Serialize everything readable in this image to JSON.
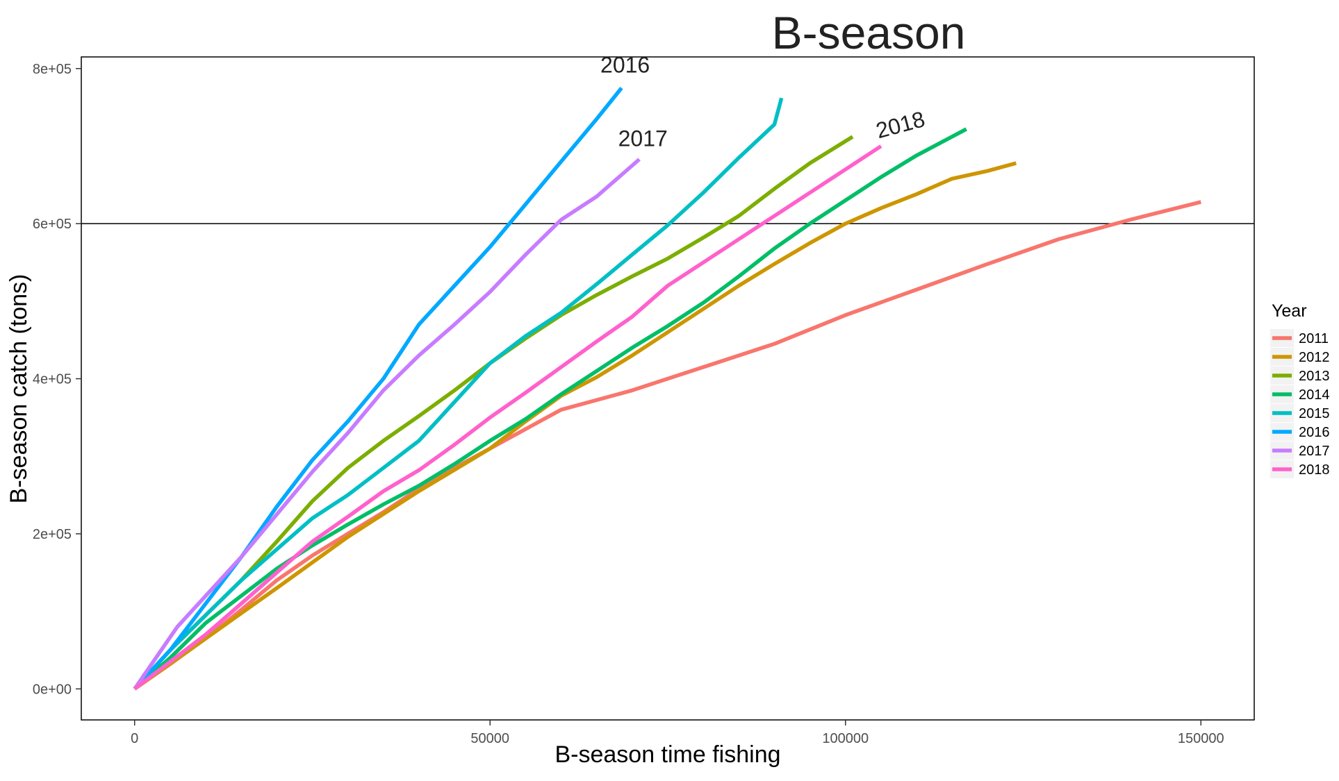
{
  "chart_data": {
    "type": "line",
    "title": "B-season",
    "xlabel": "B-season time fishing",
    "ylabel": "B-season catch (tons)",
    "xlim": [
      -7500,
      157500
    ],
    "ylim": [
      -40000,
      815000
    ],
    "x_ticks": [
      0,
      50000,
      100000,
      150000
    ],
    "x_tick_labels": [
      "0",
      "50000",
      "100000",
      "150000"
    ],
    "y_ticks": [
      0,
      200000,
      400000,
      600000,
      800000
    ],
    "y_tick_labels": [
      "0e+00",
      "2e+05",
      "4e+05",
      "6e+05",
      "8e+05"
    ],
    "grid": false,
    "hline": {
      "y": 600000,
      "color": "#000000"
    },
    "legend": {
      "title": "Year",
      "placement": "right"
    },
    "series": [
      {
        "name": "2011",
        "color": "#F8766D",
        "points": [
          [
            0,
            0
          ],
          [
            5000,
            32000
          ],
          [
            10000,
            65000
          ],
          [
            15000,
            102000
          ],
          [
            20000,
            140000
          ],
          [
            25000,
            172000
          ],
          [
            30000,
            200000
          ],
          [
            35000,
            228000
          ],
          [
            40000,
            258000
          ],
          [
            45000,
            285000
          ],
          [
            50000,
            310000
          ],
          [
            55000,
            335000
          ],
          [
            60000,
            360000
          ],
          [
            70000,
            385000
          ],
          [
            80000,
            415000
          ],
          [
            90000,
            445000
          ],
          [
            100000,
            482000
          ],
          [
            110000,
            515000
          ],
          [
            120000,
            548000
          ],
          [
            130000,
            580000
          ],
          [
            140000,
            605000
          ],
          [
            150000,
            628000
          ]
        ]
      },
      {
        "name": "2012",
        "color": "#CD9600",
        "points": [
          [
            0,
            0
          ],
          [
            10000,
            65000
          ],
          [
            20000,
            130000
          ],
          [
            30000,
            196000
          ],
          [
            40000,
            255000
          ],
          [
            50000,
            310000
          ],
          [
            55000,
            345000
          ],
          [
            60000,
            378000
          ],
          [
            65000,
            402000
          ],
          [
            70000,
            430000
          ],
          [
            75000,
            460000
          ],
          [
            80000,
            490000
          ],
          [
            85000,
            520000
          ],
          [
            90000,
            548000
          ],
          [
            95000,
            575000
          ],
          [
            100000,
            600000
          ],
          [
            105000,
            620000
          ],
          [
            110000,
            638000
          ],
          [
            115000,
            658000
          ],
          [
            120000,
            668000
          ],
          [
            124000,
            678000
          ]
        ]
      },
      {
        "name": "2013",
        "color": "#7CAE00",
        "points": [
          [
            0,
            0
          ],
          [
            5000,
            50000
          ],
          [
            10000,
            95000
          ],
          [
            15000,
            140000
          ],
          [
            20000,
            190000
          ],
          [
            25000,
            242000
          ],
          [
            30000,
            285000
          ],
          [
            35000,
            320000
          ],
          [
            40000,
            352000
          ],
          [
            45000,
            385000
          ],
          [
            50000,
            420000
          ],
          [
            55000,
            452000
          ],
          [
            60000,
            482000
          ],
          [
            65000,
            508000
          ],
          [
            70000,
            532000
          ],
          [
            75000,
            555000
          ],
          [
            80000,
            582000
          ],
          [
            85000,
            610000
          ],
          [
            90000,
            645000
          ],
          [
            95000,
            678000
          ],
          [
            101000,
            712000
          ]
        ]
      },
      {
        "name": "2014",
        "color": "#00BE67",
        "points": [
          [
            0,
            0
          ],
          [
            5000,
            40000
          ],
          [
            10000,
            85000
          ],
          [
            15000,
            120000
          ],
          [
            20000,
            155000
          ],
          [
            25000,
            185000
          ],
          [
            30000,
            212000
          ],
          [
            35000,
            238000
          ],
          [
            40000,
            262000
          ],
          [
            45000,
            290000
          ],
          [
            50000,
            320000
          ],
          [
            55000,
            348000
          ],
          [
            60000,
            380000
          ],
          [
            65000,
            410000
          ],
          [
            70000,
            440000
          ],
          [
            75000,
            468000
          ],
          [
            80000,
            498000
          ],
          [
            85000,
            532000
          ],
          [
            90000,
            568000
          ],
          [
            95000,
            600000
          ],
          [
            100000,
            630000
          ],
          [
            105000,
            660000
          ],
          [
            110000,
            688000
          ],
          [
            117000,
            722000
          ]
        ]
      },
      {
        "name": "2015",
        "color": "#00BFC4",
        "points": [
          [
            0,
            0
          ],
          [
            5000,
            50000
          ],
          [
            10000,
            95000
          ],
          [
            15000,
            140000
          ],
          [
            20000,
            180000
          ],
          [
            25000,
            220000
          ],
          [
            30000,
            250000
          ],
          [
            35000,
            285000
          ],
          [
            40000,
            320000
          ],
          [
            45000,
            370000
          ],
          [
            50000,
            420000
          ],
          [
            55000,
            455000
          ],
          [
            60000,
            485000
          ],
          [
            65000,
            522000
          ],
          [
            70000,
            560000
          ],
          [
            75000,
            598000
          ],
          [
            80000,
            640000
          ],
          [
            85000,
            685000
          ],
          [
            90000,
            728000
          ],
          [
            91000,
            762000
          ]
        ]
      },
      {
        "name": "2016",
        "color": "#00A9FF",
        "points": [
          [
            0,
            0
          ],
          [
            5000,
            50000
          ],
          [
            10000,
            110000
          ],
          [
            15000,
            170000
          ],
          [
            20000,
            235000
          ],
          [
            25000,
            295000
          ],
          [
            30000,
            345000
          ],
          [
            35000,
            400000
          ],
          [
            40000,
            470000
          ],
          [
            45000,
            520000
          ],
          [
            50000,
            570000
          ],
          [
            55000,
            625000
          ],
          [
            60000,
            680000
          ],
          [
            65000,
            735000
          ],
          [
            68500,
            775000
          ]
        ]
      },
      {
        "name": "2017",
        "color": "#C77CFF",
        "points": [
          [
            0,
            0
          ],
          [
            3000,
            40000
          ],
          [
            6000,
            80000
          ],
          [
            10000,
            120000
          ],
          [
            15000,
            170000
          ],
          [
            20000,
            225000
          ],
          [
            25000,
            280000
          ],
          [
            30000,
            330000
          ],
          [
            35000,
            385000
          ],
          [
            40000,
            430000
          ],
          [
            45000,
            470000
          ],
          [
            50000,
            512000
          ],
          [
            55000,
            560000
          ],
          [
            60000,
            605000
          ],
          [
            65000,
            635000
          ],
          [
            71000,
            683000
          ]
        ]
      },
      {
        "name": "2018",
        "color": "#FF61CC",
        "points": [
          [
            0,
            0
          ],
          [
            5000,
            35000
          ],
          [
            10000,
            70000
          ],
          [
            15000,
            110000
          ],
          [
            20000,
            150000
          ],
          [
            25000,
            190000
          ],
          [
            30000,
            222000
          ],
          [
            35000,
            255000
          ],
          [
            40000,
            282000
          ],
          [
            45000,
            315000
          ],
          [
            50000,
            350000
          ],
          [
            55000,
            382000
          ],
          [
            60000,
            415000
          ],
          [
            65000,
            448000
          ],
          [
            70000,
            480000
          ],
          [
            75000,
            520000
          ],
          [
            80000,
            550000
          ],
          [
            85000,
            580000
          ],
          [
            90000,
            610000
          ],
          [
            95000,
            640000
          ],
          [
            100000,
            670000
          ],
          [
            105000,
            700000
          ]
        ]
      }
    ],
    "annotations": [
      {
        "text": "2016",
        "x": 69000,
        "y": 795000,
        "rotate": 0
      },
      {
        "text": "2017",
        "x": 71500,
        "y": 700000,
        "rotate": 0
      },
      {
        "text": "2018",
        "x": 108000,
        "y": 718000,
        "rotate": -15
      }
    ]
  }
}
